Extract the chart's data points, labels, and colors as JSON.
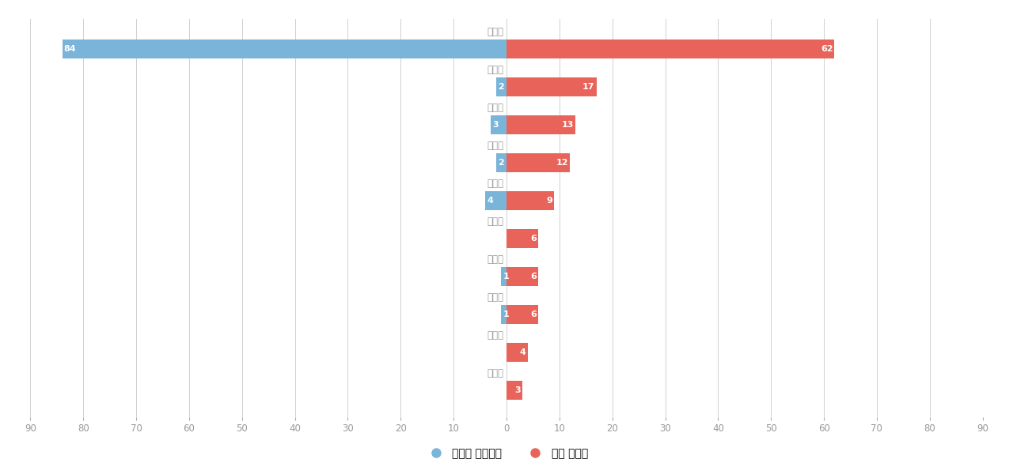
{
  "names": [
    "정성재",
    "문형인",
    "김동석",
    "박시형",
    "최준현",
    "이석주",
    "정하길",
    "김유미",
    "서승범",
    "강우정"
  ],
  "blue_values": [
    84,
    2,
    3,
    2,
    4,
    0,
    1,
    1,
    0,
    0
  ],
  "red_values": [
    62,
    17,
    13,
    12,
    9,
    6,
    6,
    6,
    4,
    3
  ],
  "blue_color": "#7ab4d8",
  "red_color": "#e8645a",
  "background_color": "#ffffff",
  "grid_color": "#d0d0d0",
  "xlim": 90,
  "legend_blue": "심사관 피인용수",
  "legend_red": "공개 특허수",
  "bar_height": 0.5,
  "label_fontsize": 8,
  "name_fontsize": 8.5,
  "tick_fontsize": 8.5,
  "legend_fontsize": 10
}
